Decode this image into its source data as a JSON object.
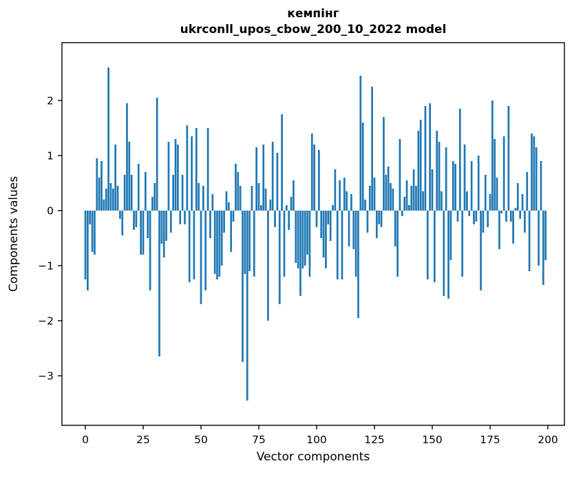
{
  "figure": {
    "title_line1": "кемпінг",
    "title_line2": "ukrconll_upos_cbow_200_10_2022 model",
    "xlabel": "Vector components",
    "ylabel": "Components values"
  },
  "chart_data": {
    "type": "bar",
    "title": "кемпінг — ukrconll_upos_cbow_200_10_2022 model",
    "xlabel": "Vector components",
    "ylabel": "Components values",
    "legend": null,
    "grid": false,
    "bar_color": "#1f77b4",
    "axis_color": "#000000",
    "background_color": "#ffffff",
    "x_ticks": [
      0,
      25,
      50,
      75,
      100,
      125,
      150,
      175,
      200
    ],
    "y_ticks": [
      2,
      1,
      0,
      -1,
      -2,
      -3
    ],
    "xlim": [
      -10.1,
      207.1
    ],
    "ylim": [
      -3.9,
      3.05
    ],
    "n_bars": 200,
    "x_start": 0,
    "values": [
      -1.25,
      -1.45,
      -0.25,
      -0.75,
      -0.8,
      0.95,
      0.6,
      0.9,
      0.2,
      0.4,
      2.6,
      0.5,
      0.4,
      1.2,
      0.45,
      -0.15,
      -0.45,
      0.65,
      1.95,
      1.25,
      0.65,
      -0.35,
      -0.3,
      0.85,
      -0.8,
      -0.8,
      0.7,
      -0.5,
      -1.45,
      0.25,
      0.5,
      2.05,
      -2.65,
      -0.6,
      -0.85,
      -0.55,
      1.25,
      -0.4,
      0.65,
      1.3,
      1.2,
      -0.25,
      0.65,
      -0.25,
      1.55,
      -1.3,
      1.35,
      -1.25,
      1.5,
      0.5,
      -1.7,
      0.45,
      -1.45,
      1.5,
      -0.5,
      0.3,
      -1.15,
      -1.25,
      -1.2,
      -1.0,
      -0.4,
      0.35,
      0.15,
      -0.75,
      -0.2,
      0.85,
      0.7,
      0.45,
      -2.75,
      -1.15,
      -3.45,
      -1.1,
      0.45,
      -1.2,
      1.15,
      0.5,
      0.1,
      1.2,
      0.4,
      -2.0,
      0.2,
      1.25,
      -0.3,
      1.05,
      -1.7,
      1.75,
      -1.2,
      0.1,
      -0.35,
      0.25,
      0.55,
      -0.95,
      -1.05,
      -1.55,
      -1.05,
      -1.0,
      -0.8,
      -1.2,
      1.4,
      1.2,
      -0.3,
      1.1,
      -0.5,
      -0.85,
      -1.05,
      -0.25,
      -0.55,
      0.1,
      0.75,
      -1.25,
      0.55,
      -1.25,
      0.6,
      0.35,
      -0.65,
      0.3,
      -0.7,
      -1.2,
      -1.95,
      2.45,
      1.6,
      0.2,
      -0.4,
      0.45,
      2.25,
      0.6,
      -0.5,
      -0.25,
      -0.3,
      1.7,
      0.65,
      0.8,
      0.5,
      0.4,
      -0.65,
      -1.2,
      1.3,
      -0.1,
      0.25,
      0.55,
      0.1,
      0.45,
      0.75,
      0.45,
      1.45,
      1.65,
      0.35,
      1.9,
      -1.25,
      1.95,
      0.75,
      -1.3,
      1.45,
      1.25,
      0.35,
      -1.55,
      1.15,
      -1.6,
      -0.9,
      0.9,
      0.85,
      -0.2,
      1.85,
      -1.2,
      1.2,
      0.35,
      -0.1,
      0.9,
      -0.25,
      -0.2,
      1.0,
      -1.45,
      -0.4,
      0.65,
      -0.3,
      0.3,
      2.0,
      1.3,
      0.6,
      -0.7,
      -0.05,
      1.35,
      -0.2,
      1.9,
      -0.2,
      -0.6,
      0.05,
      0.5,
      -0.15,
      0.3,
      -0.4,
      0.7,
      -1.1,
      1.4,
      1.35,
      1.15,
      -1.0,
      0.9,
      -1.35,
      -0.9
    ]
  }
}
